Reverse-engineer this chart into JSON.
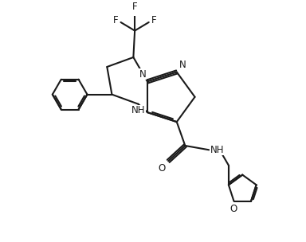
{
  "bg_color": "#ffffff",
  "line_color": "#1a1a1a",
  "line_width": 1.5,
  "font_size": 8.5,
  "fig_width": 3.84,
  "fig_height": 3.04,
  "xlim": [
    0,
    10
  ],
  "ylim": [
    0,
    8
  ]
}
